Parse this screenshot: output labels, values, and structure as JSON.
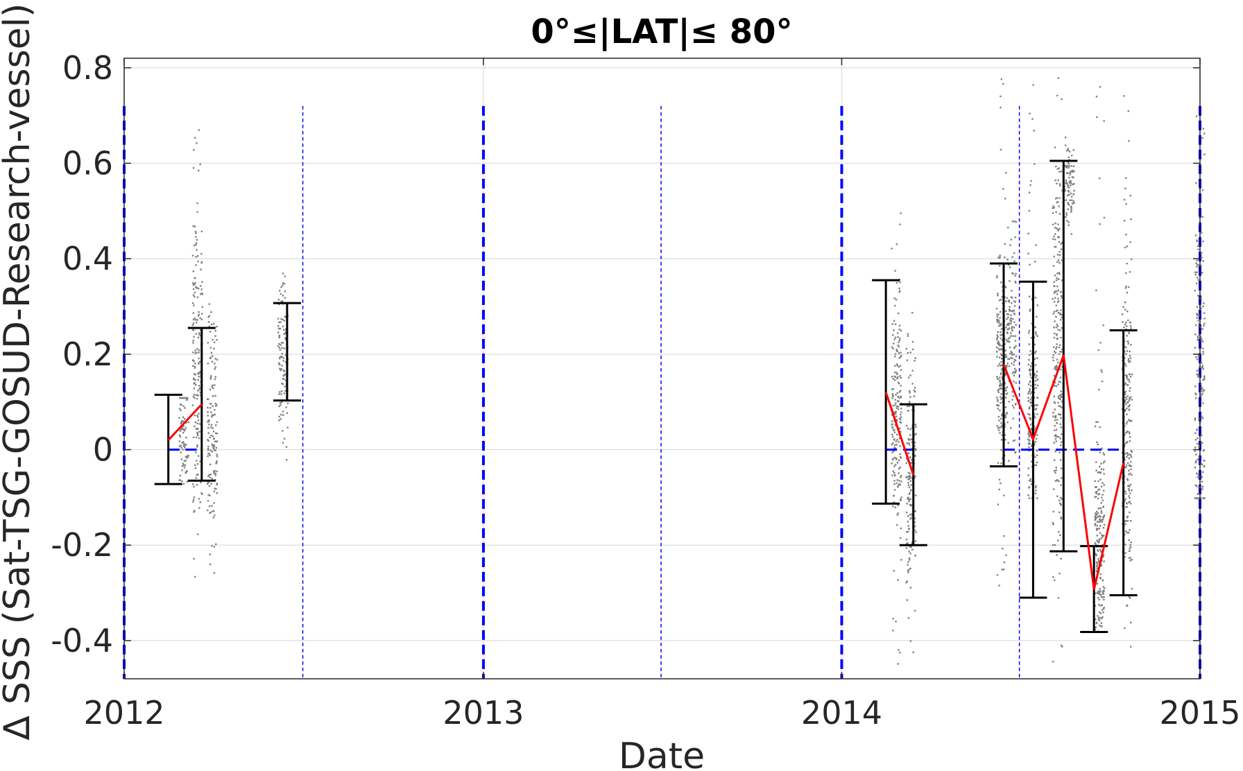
{
  "chart_data": {
    "type": "scatter",
    "title": "0°≤|LAT|≤ 80°",
    "xlabel": "Date",
    "ylabel": "∆ SSS (Sat-TSG-GOSUD-Research-vessel)",
    "xlim": [
      "2012-01-01",
      "2015-01-01"
    ],
    "ylim": [
      -0.48,
      0.82
    ],
    "x_ticks": [
      "2012",
      "2013",
      "2014",
      "2015"
    ],
    "y_ticks": [
      -0.4,
      -0.2,
      0,
      0.2,
      0.4,
      0.6,
      0.8
    ],
    "y_tick_labels": [
      "-0.4",
      "-0.2",
      "0",
      "0.2",
      "0.4",
      "0.6",
      "0.8"
    ],
    "grid": true,
    "colors": {
      "scatter": "#808080",
      "mean_line": "#ff0000",
      "errorbar": "#000000",
      "zero_line": "#0000ff",
      "year_line": "#0000ff",
      "midyear_line": "#0000ff"
    },
    "year_lines": [
      "2012-01-01",
      "2013-01-01",
      "2014-01-01",
      "2015-01-01"
    ],
    "midyear_lines": [
      "2012-07-01",
      "2013-07-01",
      "2014-07-01"
    ],
    "point_clusters": [
      {
        "date": "2012-03-01",
        "center": 0.02,
        "spread": 0.07,
        "min": -0.07,
        "max": 0.11
      },
      {
        "date": "2012-03-15",
        "center": 0.18,
        "spread": 0.14,
        "min": -0.29,
        "max": 0.69
      },
      {
        "date": "2012-03-30",
        "center": 0.05,
        "spread": 0.12,
        "min": -0.28,
        "max": 0.34
      },
      {
        "date": "2012-06-10",
        "center": 0.18,
        "spread": 0.08,
        "min": -0.03,
        "max": 0.38
      },
      {
        "date": "2014-02-25",
        "center": 0.08,
        "spread": 0.12,
        "min": -0.45,
        "max": 0.54
      },
      {
        "date": "2014-03-12",
        "center": -0.04,
        "spread": 0.12,
        "min": -0.45,
        "max": 0.33
      },
      {
        "date": "2014-06-12",
        "center": 0.18,
        "spread": 0.1,
        "min": -0.29,
        "max": 0.78
      },
      {
        "date": "2014-06-22",
        "center": 0.25,
        "spread": 0.1,
        "min": -0.05,
        "max": 0.48
      },
      {
        "date": "2014-07-14",
        "center": 0.1,
        "spread": 0.1,
        "min": -0.1,
        "max": 0.78
      },
      {
        "date": "2014-08-08",
        "center": 0.2,
        "spread": 0.2,
        "min": -0.48,
        "max": 0.78
      },
      {
        "date": "2014-08-20",
        "center": 0.56,
        "spread": 0.04,
        "min": 0.45,
        "max": 0.66
      },
      {
        "date": "2014-09-20",
        "center": -0.2,
        "spread": 0.12,
        "min": -0.38,
        "max": 0.78
      },
      {
        "date": "2014-10-18",
        "center": 0.05,
        "spread": 0.16,
        "min": -0.48,
        "max": 0.79
      },
      {
        "date": "2014-12-31",
        "center": 0.15,
        "spread": 0.2,
        "min": -0.1,
        "max": 0.7
      }
    ],
    "errorbars": [
      {
        "date": "2012-02-15",
        "mean": 0.02,
        "lower": -0.072,
        "upper": 0.115
      },
      {
        "date": "2012-03-20",
        "mean": 0.095,
        "lower": -0.065,
        "upper": 0.255
      },
      {
        "date": "2012-06-15",
        "mean": 0.205,
        "lower": 0.103,
        "upper": 0.307
      },
      {
        "date": "2014-02-15",
        "mean": 0.12,
        "lower": -0.113,
        "upper": 0.355
      },
      {
        "date": "2014-03-15",
        "mean": -0.053,
        "lower": -0.2,
        "upper": 0.095
      },
      {
        "date": "2014-06-15",
        "mean": 0.178,
        "lower": -0.035,
        "upper": 0.39
      },
      {
        "date": "2014-07-15",
        "mean": 0.022,
        "lower": -0.31,
        "upper": 0.352
      },
      {
        "date": "2014-08-15",
        "mean": 0.198,
        "lower": -0.213,
        "upper": 0.605
      },
      {
        "date": "2014-09-15",
        "mean": -0.293,
        "lower": -0.382,
        "upper": -0.202
      },
      {
        "date": "2014-10-15",
        "mean": -0.028,
        "lower": -0.305,
        "upper": 0.25
      }
    ],
    "mean_segments": [
      [
        "2012-02-15",
        "2012-03-20"
      ],
      [
        "2014-02-15",
        "2014-03-15"
      ],
      [
        "2014-06-15",
        "2014-07-15",
        "2014-08-15",
        "2014-09-15",
        "2014-10-15"
      ]
    ],
    "zero_segments": [
      [
        "2012-02-15",
        "2012-03-20"
      ],
      [
        "2014-02-15",
        "2014-03-15"
      ],
      [
        "2014-06-15",
        "2014-10-15"
      ]
    ]
  }
}
